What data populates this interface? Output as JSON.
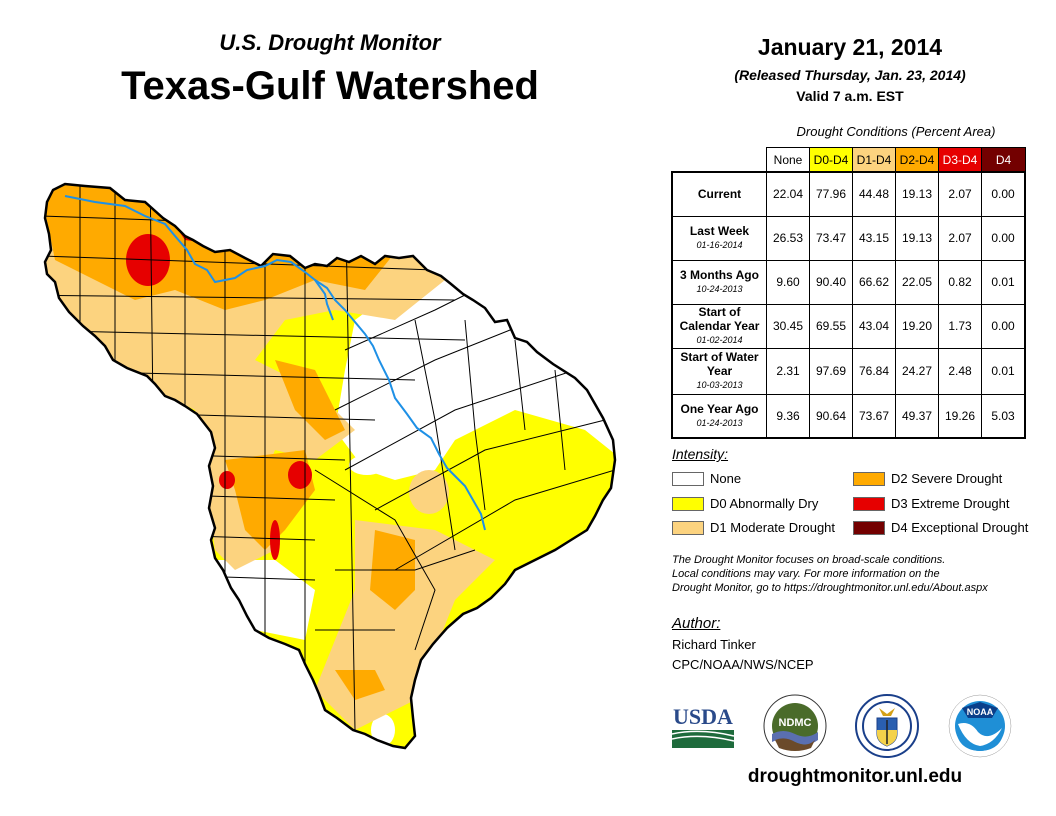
{
  "header": {
    "subtitle": "U.S. Drought Monitor",
    "title": "Texas-Gulf Watershed",
    "date": "January 21, 2014",
    "released": "(Released Thursday, Jan. 23, 2014)",
    "valid": "Valid 7 a.m. EST"
  },
  "conditions_table": {
    "caption": "Drought Conditions (Percent Area)",
    "columns": [
      {
        "label": "None",
        "color": "#ffffff",
        "text_color": "#000000"
      },
      {
        "label": "D0-D4",
        "color": "#ffff00",
        "text_color": "#000000"
      },
      {
        "label": "D1-D4",
        "color": "#fcd37f",
        "text_color": "#000000"
      },
      {
        "label": "D2-D4",
        "color": "#ffaa00",
        "text_color": "#000000"
      },
      {
        "label": "D3-D4",
        "color": "#e60000",
        "text_color": "#ffffff"
      },
      {
        "label": "D4",
        "color": "#730000",
        "text_color": "#ffffff"
      }
    ],
    "rows": [
      {
        "label": "Current",
        "date": "",
        "values": [
          "22.04",
          "77.96",
          "44.48",
          "19.13",
          "2.07",
          "0.00"
        ]
      },
      {
        "label": "Last Week",
        "date": "01-16-2014",
        "values": [
          "26.53",
          "73.47",
          "43.15",
          "19.13",
          "2.07",
          "0.00"
        ]
      },
      {
        "label": "3 Months Ago",
        "date": "10-24-2013",
        "values": [
          "9.60",
          "90.40",
          "66.62",
          "22.05",
          "0.82",
          "0.01"
        ]
      },
      {
        "label": "Start of Calendar Year",
        "date": "01-02-2014",
        "values": [
          "30.45",
          "69.55",
          "43.04",
          "19.20",
          "1.73",
          "0.00"
        ]
      },
      {
        "label": "Start of Water Year",
        "date": "10-03-2013",
        "values": [
          "2.31",
          "97.69",
          "76.84",
          "24.27",
          "2.48",
          "0.01"
        ]
      },
      {
        "label": "One Year Ago",
        "date": "01-24-2013",
        "values": [
          "9.36",
          "90.64",
          "73.67",
          "49.37",
          "19.26",
          "5.03"
        ]
      }
    ]
  },
  "legend": {
    "title": "Intensity:",
    "items": [
      {
        "label": "None",
        "color": "#ffffff"
      },
      {
        "label": "D0 Abnormally Dry",
        "color": "#ffff00"
      },
      {
        "label": "D1 Moderate Drought",
        "color": "#fcd37f"
      },
      {
        "label": "D2 Severe Drought",
        "color": "#ffaa00"
      },
      {
        "label": "D3 Extreme Drought",
        "color": "#e60000"
      },
      {
        "label": "D4 Exceptional Drought",
        "color": "#730000"
      }
    ]
  },
  "note": {
    "lines": [
      "The Drought Monitor focuses on broad-scale conditions.",
      "Local conditions may vary. For more information on the",
      "Drought Monitor, go to https://droughtmonitor.unl.edu/About.aspx"
    ]
  },
  "author": {
    "title": "Author:",
    "name": "Richard Tinker",
    "org": "CPC/NOAA/NWS/NCEP"
  },
  "logos": {
    "usda": "USDA",
    "ndmc": "NDMC",
    "noaa": "NOAA"
  },
  "footer": {
    "url": "droughtmonitor.unl.edu"
  },
  "map": {
    "river_color": "#1e90e6",
    "border_color": "#000000"
  }
}
